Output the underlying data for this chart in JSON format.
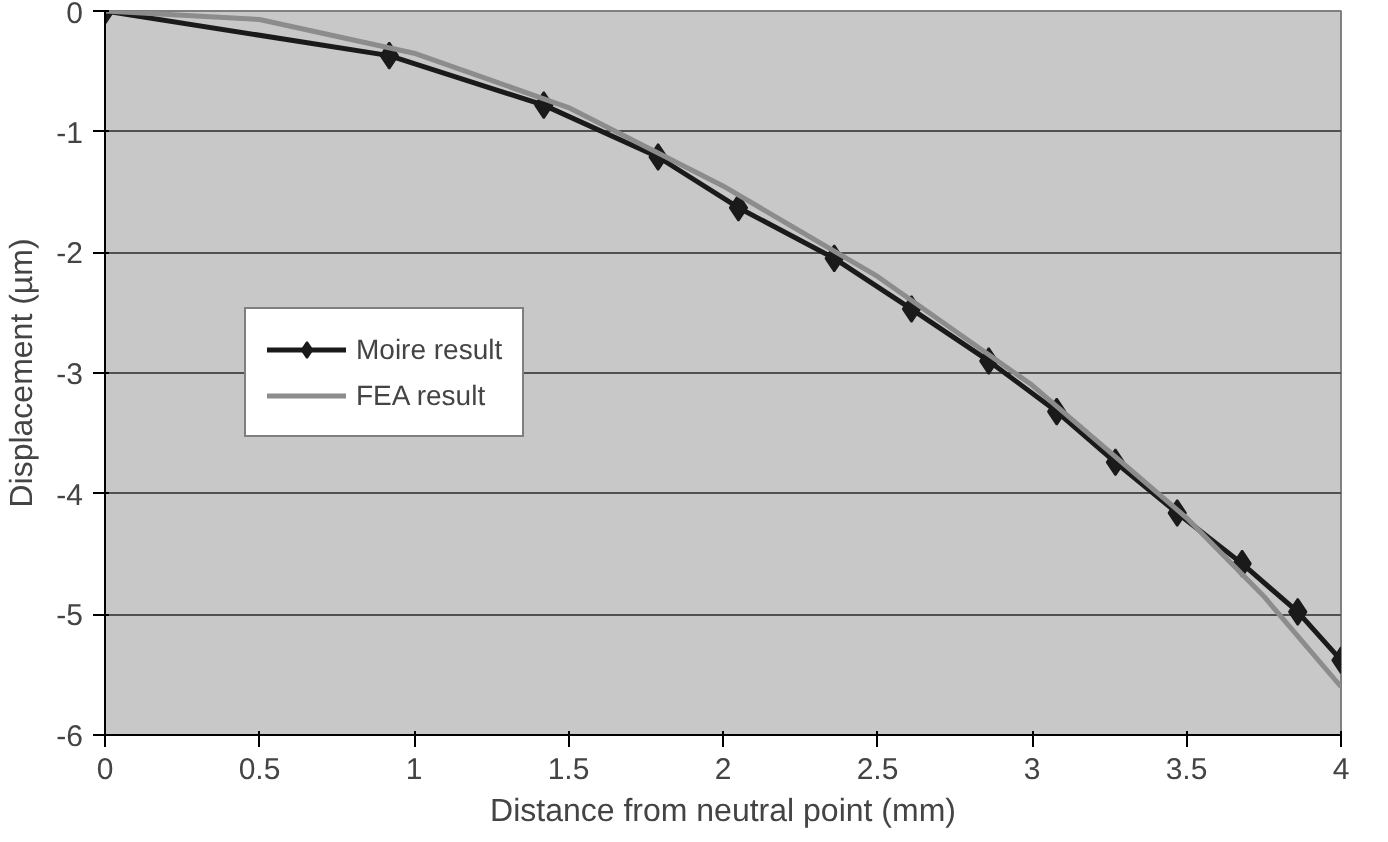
{
  "chart_data": {
    "type": "line",
    "xlabel": "Distance from neutral point (mm)",
    "ylabel": "Displacement (µm)",
    "xlim": [
      0,
      4
    ],
    "xticks": [
      0,
      0.5,
      1,
      1.5,
      2,
      2.5,
      3,
      3.5,
      4
    ],
    "ylim": [
      -6,
      0
    ],
    "yticks": [
      -6,
      -5,
      -4,
      -3,
      -2,
      -1,
      0
    ],
    "grid": "y",
    "legend": "left",
    "series": [
      {
        "name": "Moire result",
        "color": "#1a1a1a",
        "marker": "diamond",
        "x": [
          0,
          0.92,
          1.42,
          1.79,
          2.05,
          2.36,
          2.61,
          2.86,
          3.08,
          3.27,
          3.47,
          3.68,
          3.86,
          4.0
        ],
        "values": [
          0,
          -0.37,
          -0.78,
          -1.21,
          -1.63,
          -2.05,
          -2.47,
          -2.9,
          -3.32,
          -3.74,
          -4.16,
          -4.58,
          -4.98,
          -5.38
        ]
      },
      {
        "name": "FEA result",
        "color": "#8c8c8c",
        "marker": "none",
        "x": [
          0,
          0.5,
          1,
          1.5,
          2,
          2.5,
          3,
          3.5,
          3.75,
          4
        ],
        "values": [
          0,
          -0.07,
          -0.35,
          -0.8,
          -1.45,
          -2.2,
          -3.1,
          -4.2,
          -4.85,
          -5.6
        ]
      }
    ]
  }
}
